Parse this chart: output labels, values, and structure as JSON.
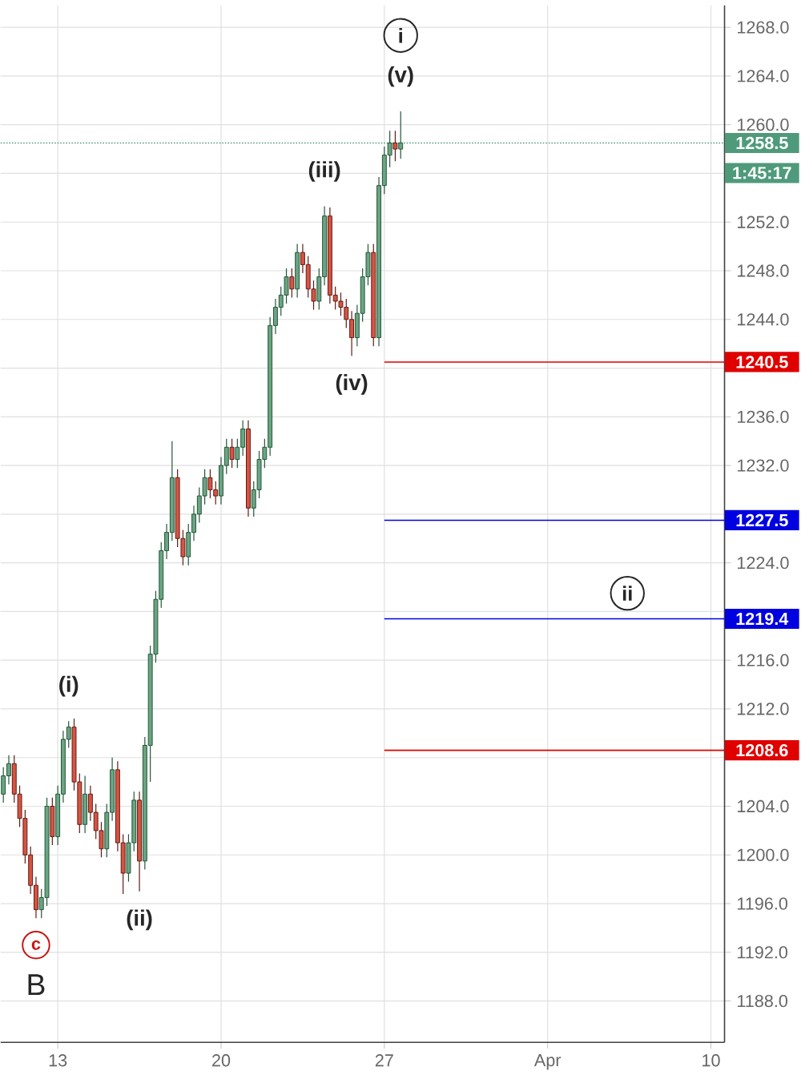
{
  "chart_data": {
    "type": "candlestick",
    "categories": [
      null,
      null,
      null,
      null,
      null,
      null,
      null,
      null,
      null,
      null,
      "13",
      null,
      null,
      null,
      null,
      null,
      null,
      null,
      null,
      null,
      null,
      null,
      null,
      null,
      null,
      null,
      null,
      null,
      null,
      null,
      null,
      null,
      null,
      null,
      null,
      null,
      null,
      null,
      null,
      null,
      "20",
      null,
      null,
      null,
      null,
      null,
      null,
      null,
      null,
      null,
      null,
      null,
      null,
      null,
      null,
      null,
      null,
      null,
      null,
      null,
      null,
      null,
      null,
      null,
      null,
      null,
      null,
      null,
      null,
      null,
      "27",
      null,
      null,
      null,
      null,
      null,
      null,
      null,
      null,
      null,
      null,
      null,
      null,
      null,
      null,
      null,
      null,
      null,
      null,
      null,
      null,
      null,
      null,
      null,
      null,
      null,
      null,
      null,
      null,
      null,
      "Apr",
      null,
      null,
      null,
      null,
      null,
      null,
      null,
      null,
      null,
      null,
      null,
      null,
      null,
      null,
      null,
      null,
      null,
      null,
      null,
      null,
      null,
      null,
      null,
      null,
      null,
      null,
      null,
      null,
      null,
      "10",
      null,
      null
    ],
    "ohlc": [
      [
        1205,
        1207.2,
        1204.3,
        1206.5
      ],
      [
        1206.5,
        1208.2,
        1205.8,
        1207.5
      ],
      [
        1207.5,
        1208.2,
        1204.3,
        1205
      ],
      [
        1205,
        1205.7,
        1202.3,
        1203
      ],
      [
        1203,
        1203.7,
        1199.3,
        1200
      ],
      [
        1200,
        1200.7,
        1196.8,
        1197.5
      ],
      [
        1197.5,
        1198.2,
        1194.8,
        1195.5
      ],
      [
        1195.5,
        1197.2,
        1194.8,
        1196.5
      ],
      [
        1196.5,
        1204.7,
        1195.8,
        1204
      ],
      [
        1204,
        1204.7,
        1200.8,
        1201.5
      ],
      [
        1201.5,
        1205.7,
        1200.8,
        1205
      ],
      [
        1205,
        1210.2,
        1204.3,
        1209.5
      ],
      [
        1209.5,
        1211,
        1208.8,
        1210.5
      ],
      [
        1210.5,
        1211.2,
        1205.3,
        1206
      ],
      [
        1206,
        1206.7,
        1201.8,
        1202.5
      ],
      [
        1202.5,
        1206.5,
        1201.8,
        1205
      ],
      [
        1205,
        1205.7,
        1202.8,
        1203.5
      ],
      [
        1203.5,
        1204.2,
        1201.3,
        1202
      ],
      [
        1202,
        1202.7,
        1199.8,
        1200.5
      ],
      [
        1200.5,
        1204.2,
        1199.8,
        1203.5
      ],
      [
        1203.5,
        1208,
        1202.8,
        1207
      ],
      [
        1207,
        1207.7,
        1200.3,
        1201
      ],
      [
        1201,
        1201.7,
        1196.8,
        1198.5
      ],
      [
        1198.5,
        1201.7,
        1197.8,
        1201
      ],
      [
        1201,
        1205.2,
        1200.3,
        1204.5
      ],
      [
        1204.5,
        1205.2,
        1197,
        1199.5
      ],
      [
        1199.5,
        1209.7,
        1198.8,
        1209
      ],
      [
        1209,
        1217.2,
        1206,
        1216.5
      ],
      [
        1216.5,
        1221.7,
        1215.8,
        1221
      ],
      [
        1221,
        1225.7,
        1220.3,
        1225
      ],
      [
        1225,
        1227.2,
        1224.3,
        1226.5
      ],
      [
        1226.5,
        1234,
        1225.8,
        1231
      ],
      [
        1231,
        1231.7,
        1225.3,
        1226
      ],
      [
        1226,
        1226.7,
        1223.8,
        1224.5
      ],
      [
        1224.5,
        1227.2,
        1223.8,
        1226.5
      ],
      [
        1226.5,
        1228.7,
        1225.8,
        1228
      ],
      [
        1228,
        1230.2,
        1227.3,
        1229.5
      ],
      [
        1229.5,
        1231.7,
        1228.8,
        1231
      ],
      [
        1231,
        1231.7,
        1229.3,
        1230
      ],
      [
        1230,
        1230.7,
        1228.8,
        1229.5
      ],
      [
        1229.5,
        1232.7,
        1228.8,
        1232
      ],
      [
        1232,
        1234.2,
        1231.3,
        1233.5
      ],
      [
        1233.5,
        1234.2,
        1231.8,
        1232.5
      ],
      [
        1232.5,
        1234.2,
        1231.8,
        1233.5
      ],
      [
        1233.5,
        1235.7,
        1232.8,
        1235
      ],
      [
        1235,
        1235.7,
        1227.8,
        1228.5
      ],
      [
        1228.5,
        1230.7,
        1227.8,
        1230
      ],
      [
        1230,
        1233.2,
        1229.3,
        1232.5
      ],
      [
        1232.5,
        1234.2,
        1231.8,
        1233.5
      ],
      [
        1233.5,
        1244.2,
        1232.8,
        1243.5
      ],
      [
        1243.5,
        1245.7,
        1242.8,
        1245
      ],
      [
        1245,
        1246.7,
        1244.3,
        1246
      ],
      [
        1246,
        1248.2,
        1245.3,
        1247.5
      ],
      [
        1247.5,
        1248.2,
        1245.8,
        1246.5
      ],
      [
        1246.5,
        1250.2,
        1245.8,
        1249.5
      ],
      [
        1249.5,
        1250.2,
        1247.8,
        1248.5
      ],
      [
        1248.5,
        1249.2,
        1245.8,
        1246.5
      ],
      [
        1246.5,
        1247.2,
        1244.8,
        1245.5
      ],
      [
        1245.5,
        1248.2,
        1244.8,
        1247.5
      ],
      [
        1247.5,
        1253.3,
        1246.8,
        1252.5
      ],
      [
        1252.5,
        1253.2,
        1245.3,
        1246
      ],
      [
        1246,
        1246.7,
        1244.8,
        1245.5
      ],
      [
        1245.5,
        1246.2,
        1244.3,
        1245
      ],
      [
        1245,
        1245.7,
        1243.3,
        1244
      ],
      [
        1244,
        1244.7,
        1241,
        1242.5
      ],
      [
        1242.5,
        1245.2,
        1241.8,
        1244.5
      ],
      [
        1244.5,
        1248.2,
        1243.8,
        1247.5
      ],
      [
        1247.5,
        1250.2,
        1246.8,
        1249.5
      ],
      [
        1249.5,
        1250.2,
        1241.8,
        1242.5
      ],
      [
        1242.5,
        1255.7,
        1241.8,
        1255
      ],
      [
        1255,
        1258.2,
        1254.3,
        1257.5
      ],
      [
        1257.5,
        1259.5,
        1256.5,
        1258.5
      ],
      [
        1258.5,
        1259.5,
        1257,
        1258
      ],
      [
        1258,
        1261.1,
        1257.2,
        1258.5
      ],
      null,
      null,
      null,
      null,
      null,
      null,
      null,
      null,
      null,
      null,
      null,
      null,
      null,
      null,
      null,
      null,
      null,
      null,
      null,
      null,
      null,
      null,
      null,
      null,
      null,
      null,
      null,
      null,
      null,
      null,
      null,
      null,
      null,
      null,
      null,
      null,
      null,
      null,
      null,
      null,
      null,
      null,
      null,
      null,
      null,
      null,
      null,
      null,
      null,
      null,
      null,
      null,
      null,
      null,
      null,
      null,
      null,
      null,
      null
    ],
    "ylim": [
      1184.6,
      1269.8
    ],
    "yticks": [
      {
        "value": 1188,
        "label": "1188.0"
      },
      {
        "value": 1192,
        "label": "1192.0"
      },
      {
        "value": 1196,
        "label": "1196.0"
      },
      {
        "value": 1200,
        "label": "1200.0"
      },
      {
        "value": 1204,
        "label": "1204.0"
      },
      {
        "value": 1208,
        "label": null
      },
      {
        "value": 1212,
        "label": "1212.0"
      },
      {
        "value": 1216,
        "label": "1216.0"
      },
      {
        "value": 1220,
        "label": null
      },
      {
        "value": 1224,
        "label": "1224.0"
      },
      {
        "value": 1228,
        "label": null
      },
      {
        "value": 1232,
        "label": "1232.0"
      },
      {
        "value": 1236,
        "label": "1236.0"
      },
      {
        "value": 1240,
        "label": null
      },
      {
        "value": 1244,
        "label": "1244.0"
      },
      {
        "value": 1248,
        "label": "1248.0"
      },
      {
        "value": 1252,
        "label": "1252.0"
      },
      {
        "value": 1256,
        "label": null
      },
      {
        "value": 1260,
        "label": "1260.0"
      },
      {
        "value": 1264,
        "label": "1264.0"
      },
      {
        "value": 1268,
        "label": "1268.0"
      }
    ],
    "grid": true,
    "ref_lines": [
      {
        "axis": "y",
        "value": 1258.5,
        "label": "1258.5",
        "color": "#4f9a7a",
        "line_style": "dotted"
      },
      {
        "axis": "y",
        "value": 1240.5,
        "label": "1240.5",
        "color": "#e00000",
        "line_style": "solid"
      },
      {
        "axis": "y",
        "value": 1227.5,
        "label": "1227.5",
        "color": "#0000e0",
        "line_style": "solid"
      },
      {
        "axis": "y",
        "value": 1219.4,
        "label": "1219.4",
        "color": "#0000e0",
        "line_style": "solid"
      },
      {
        "axis": "y",
        "value": 1208.6,
        "label": "1208.6",
        "color": "#e00000",
        "line_style": "solid"
      }
    ],
    "annotations": [
      {
        "text": "(i)",
        "y": 1211
      },
      {
        "text": "(ii)",
        "y": 1197
      },
      {
        "text": "(iii)",
        "y": 1253.3
      },
      {
        "text": "(iv)",
        "y": 1241
      },
      {
        "text": "(v)",
        "y": 1261.1
      },
      "i",
      {
        "text": "ii",
        "y": 1221.5
      },
      {
        "text": "c",
        "y": 1194.8
      },
      "B",
      "1:45:17"
    ]
  }
}
